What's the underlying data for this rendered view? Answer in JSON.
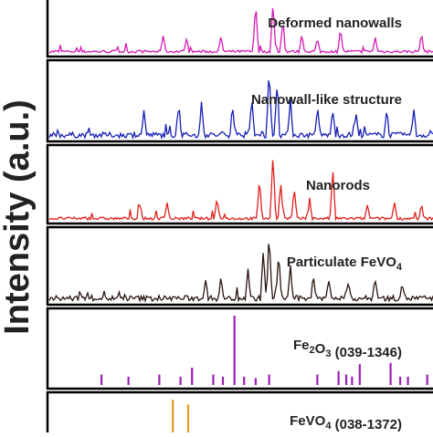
{
  "chart_data": {
    "type": "line",
    "ylabel": "Intensity (a.u.)",
    "panels": [
      {
        "kind": "pattern",
        "name": "Deformed nanowalls",
        "color": "#d21bb4",
        "noise": 3,
        "peaks": [
          {
            "x": 0.54,
            "h": 1.0
          },
          {
            "x": 0.585,
            "h": 1.0
          },
          {
            "x": 0.61,
            "h": 0.55
          },
          {
            "x": 0.3,
            "h": 0.35
          },
          {
            "x": 0.36,
            "h": 0.25
          },
          {
            "x": 0.45,
            "h": 0.3
          },
          {
            "x": 0.66,
            "h": 0.35
          },
          {
            "x": 0.7,
            "h": 0.25
          },
          {
            "x": 0.76,
            "h": 0.45
          },
          {
            "x": 0.85,
            "h": 0.3
          },
          {
            "x": 0.97,
            "h": 0.35
          }
        ]
      },
      {
        "kind": "pattern",
        "name": "Nanowall-like structure",
        "color": "#1620b4",
        "noise": 6,
        "peaks": [
          {
            "x": 0.48,
            "h": 0.45
          },
          {
            "x": 0.53,
            "h": 0.5
          },
          {
            "x": 0.575,
            "h": 1.0
          },
          {
            "x": 0.595,
            "h": 0.7
          },
          {
            "x": 0.63,
            "h": 0.55
          },
          {
            "x": 0.25,
            "h": 0.35
          },
          {
            "x": 0.34,
            "h": 0.4
          },
          {
            "x": 0.4,
            "h": 0.45
          },
          {
            "x": 0.7,
            "h": 0.4
          },
          {
            "x": 0.74,
            "h": 0.35
          },
          {
            "x": 0.8,
            "h": 0.3
          },
          {
            "x": 0.88,
            "h": 0.35
          },
          {
            "x": 0.95,
            "h": 0.35
          }
        ]
      },
      {
        "kind": "pattern",
        "name": "Nanorods",
        "color": "#e0201b",
        "noise": 3,
        "peaks": [
          {
            "x": 0.55,
            "h": 0.6
          },
          {
            "x": 0.585,
            "h": 1.0
          },
          {
            "x": 0.605,
            "h": 0.55
          },
          {
            "x": 0.64,
            "h": 0.45
          },
          {
            "x": 0.74,
            "h": 0.75
          },
          {
            "x": 0.24,
            "h": 0.2
          },
          {
            "x": 0.31,
            "h": 0.25
          },
          {
            "x": 0.44,
            "h": 0.3
          },
          {
            "x": 0.68,
            "h": 0.25
          },
          {
            "x": 0.83,
            "h": 0.2
          },
          {
            "x": 0.9,
            "h": 0.25
          },
          {
            "x": 0.97,
            "h": 0.2
          }
        ]
      },
      {
        "kind": "pattern",
        "name": "Particulate FeVO₄",
        "color": "#2a1410",
        "noise": 6,
        "peaks": [
          {
            "x": 0.52,
            "h": 0.45
          },
          {
            "x": 0.56,
            "h": 0.75
          },
          {
            "x": 0.575,
            "h": 1.0
          },
          {
            "x": 0.6,
            "h": 0.7
          },
          {
            "x": 0.63,
            "h": 0.5
          },
          {
            "x": 0.41,
            "h": 0.3
          },
          {
            "x": 0.45,
            "h": 0.3
          },
          {
            "x": 0.69,
            "h": 0.35
          },
          {
            "x": 0.73,
            "h": 0.3
          },
          {
            "x": 0.78,
            "h": 0.25
          },
          {
            "x": 0.85,
            "h": 0.3
          },
          {
            "x": 0.92,
            "h": 0.25
          }
        ]
      },
      {
        "kind": "reference",
        "name": "Fe₂O₃ (039-1346)",
        "color": "#9b1fb2",
        "lines": [
          {
            "x": 0.14,
            "h": 0.15
          },
          {
            "x": 0.21,
            "h": 0.12
          },
          {
            "x": 0.29,
            "h": 0.15
          },
          {
            "x": 0.345,
            "h": 0.12
          },
          {
            "x": 0.375,
            "h": 0.25
          },
          {
            "x": 0.43,
            "h": 0.15
          },
          {
            "x": 0.455,
            "h": 0.12
          },
          {
            "x": 0.485,
            "h": 1.0
          },
          {
            "x": 0.51,
            "h": 0.12
          },
          {
            "x": 0.54,
            "h": 0.1
          },
          {
            "x": 0.575,
            "h": 0.15
          },
          {
            "x": 0.7,
            "h": 0.15
          },
          {
            "x": 0.755,
            "h": 0.2
          },
          {
            "x": 0.775,
            "h": 0.15
          },
          {
            "x": 0.79,
            "h": 0.12
          },
          {
            "x": 0.81,
            "h": 0.3
          },
          {
            "x": 0.89,
            "h": 0.32
          },
          {
            "x": 0.915,
            "h": 0.12
          },
          {
            "x": 0.935,
            "h": 0.12
          },
          {
            "x": 0.985,
            "h": 0.15
          }
        ]
      },
      {
        "kind": "reference",
        "name": "FeVO₄ (038-1372)",
        "color": "#e89a1c",
        "lines": [
          {
            "x": 0.325,
            "h": 1.0
          },
          {
            "x": 0.365,
            "h": 0.85
          }
        ]
      }
    ]
  }
}
